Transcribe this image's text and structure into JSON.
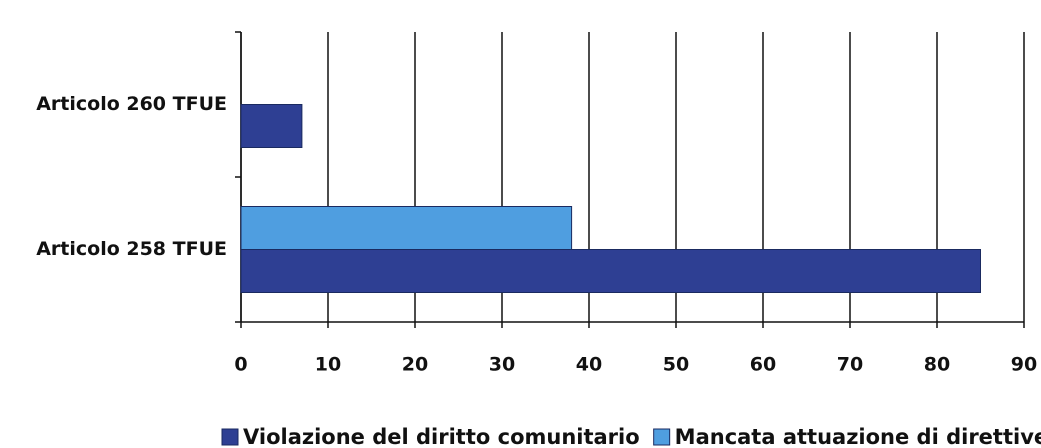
{
  "chart_data": {
    "type": "hbar",
    "categories": [
      "Articolo 260 TFUE",
      "Articolo 258 TFUE"
    ],
    "series": [
      {
        "name": "Violazione del diritto comunitario",
        "color": "#2e3f93",
        "values": [
          7,
          85
        ]
      },
      {
        "name": "Mancata attuazione di direttive",
        "color": "#4f9ee0",
        "values": [
          0,
          38
        ]
      }
    ],
    "xlim": [
      0,
      90
    ],
    "xticks": [
      0,
      10,
      20,
      30,
      40,
      50,
      60,
      70,
      80,
      90
    ],
    "grid": true,
    "legend": "bottom"
  }
}
